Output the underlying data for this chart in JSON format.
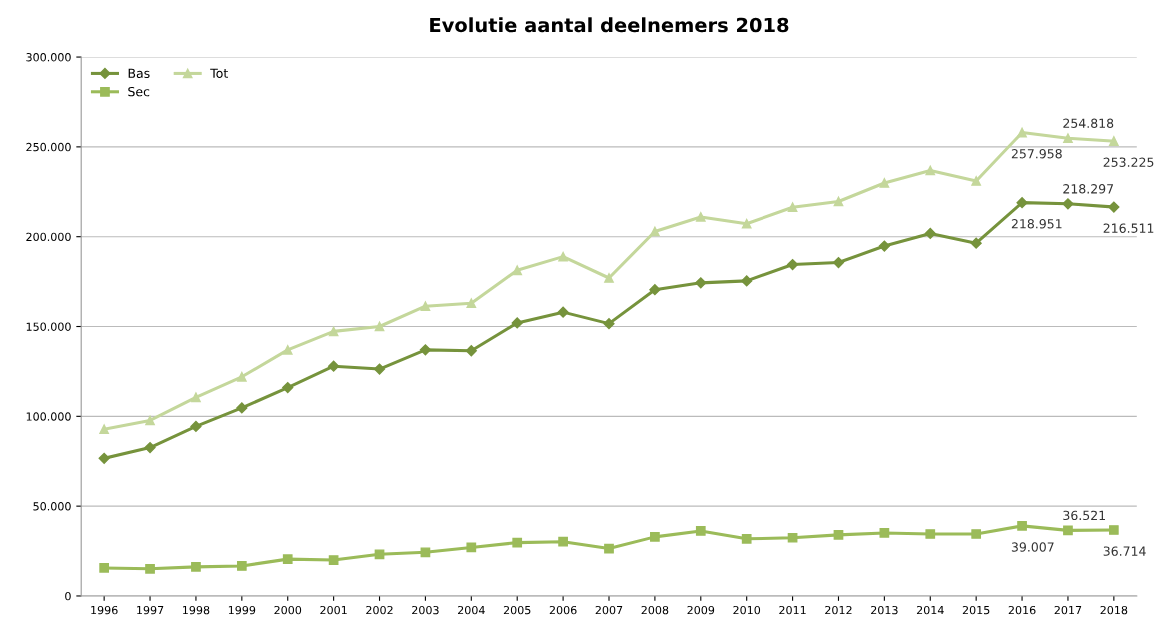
{
  "chart_data": {
    "type": "line",
    "title": "Evolutie aantal deelnemers 2018",
    "categories": [
      "1996",
      "1997",
      "1998",
      "1999",
      "2000",
      "2001",
      "2002",
      "2003",
      "2004",
      "2005",
      "2006",
      "2007",
      "2008",
      "2009",
      "2010",
      "2011",
      "2012",
      "2013",
      "2014",
      "2015",
      "2016",
      "2017",
      "2018"
    ],
    "series": [
      {
        "name": "Bas",
        "color": "#76933c",
        "marker": "diamond",
        "values": [
          76600,
          82600,
          94400,
          104700,
          116000,
          127900,
          126300,
          137000,
          136500,
          152000,
          158000,
          151600,
          170500,
          174300,
          175400,
          184500,
          185600,
          194800,
          201800,
          196400,
          218951,
          218297,
          216511
        ],
        "value_labels": [
          null,
          null,
          null,
          null,
          null,
          null,
          null,
          null,
          null,
          null,
          null,
          null,
          null,
          null,
          null,
          null,
          null,
          null,
          null,
          null,
          "218.951",
          "218.297",
          "216.511"
        ]
      },
      {
        "name": "Sec",
        "color": "#9bbb59",
        "marker": "square",
        "values": [
          15600,
          15100,
          16200,
          16700,
          20500,
          20000,
          23200,
          24300,
          27000,
          29700,
          30200,
          26400,
          32900,
          36200,
          31800,
          32400,
          34000,
          35100,
          34500,
          34500,
          39007,
          36521,
          36714
        ],
        "value_labels": [
          null,
          null,
          null,
          null,
          null,
          null,
          null,
          null,
          null,
          null,
          null,
          null,
          null,
          null,
          null,
          null,
          null,
          null,
          null,
          null,
          "39.007",
          "36.521",
          "36.714"
        ]
      },
      {
        "name": "Tot",
        "color": "#c4d79b",
        "marker": "triangle",
        "values": [
          92800,
          97700,
          110600,
          122000,
          137000,
          147300,
          150000,
          161300,
          163000,
          181300,
          188900,
          177000,
          202900,
          211000,
          207200,
          216400,
          219600,
          229900,
          236900,
          231000,
          257958,
          254818,
          253225
        ],
        "value_labels": [
          null,
          null,
          null,
          null,
          null,
          null,
          null,
          null,
          null,
          null,
          null,
          null,
          null,
          null,
          null,
          null,
          null,
          null,
          null,
          null,
          "257.958",
          "254.818",
          "253.225"
        ]
      }
    ],
    "ylim": [
      0,
      300000
    ],
    "yticks": [
      0,
      {
        "value": 50000,
        "label": "50.000"
      },
      {
        "value": 100000,
        "label": "100.000"
      },
      {
        "value": 150000,
        "label": "150.000"
      },
      {
        "value": 200000,
        "label": "200.000"
      },
      {
        "value": 250000,
        "label": "250.000"
      },
      {
        "value": 300000,
        "label": "300.000"
      }
    ],
    "grid": "y",
    "legend": "top left",
    "line_style": "solid"
  }
}
